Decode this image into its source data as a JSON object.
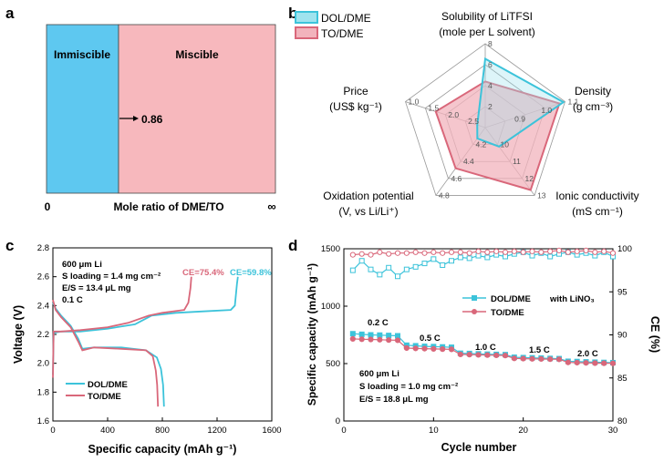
{
  "panels": {
    "a": "a",
    "b": "b",
    "c": "c",
    "d": "d"
  },
  "colors": {
    "dol": "#3cc3da",
    "to": "#d9677a",
    "dol_fill": "#9fe3ee",
    "to_fill": "#f2b3bc",
    "imm": "#5ec8f0",
    "mis": "#f7b8bd"
  },
  "chart_data": [
    {
      "id": "a",
      "type": "bar",
      "title": "",
      "xlabel": "Mole ratio of DME/TO",
      "xlim_labels": [
        "0",
        "∞"
      ],
      "regions": [
        {
          "name": "Immiscible",
          "from": 0,
          "to": 0.86
        },
        {
          "name": "Miscible",
          "from": 0.86,
          "to": "∞"
        }
      ],
      "annotation": "0.86"
    },
    {
      "id": "b",
      "type": "radar",
      "legend": [
        "DOL/DME",
        "TO/DME"
      ],
      "axes": [
        {
          "label": [
            "Solubility of LiTFSI",
            "(mole per L solvent)"
          ],
          "ticks": [
            "2",
            "4",
            "6",
            "8"
          ]
        },
        {
          "label": [
            "Density",
            "(g cm⁻³)"
          ],
          "ticks": [
            "0.9",
            "1.0",
            "1.1"
          ]
        },
        {
          "label": [
            "Ionic conductivity",
            "(mS cm⁻¹)"
          ],
          "ticks": [
            "10",
            "11",
            "12",
            "13"
          ]
        },
        {
          "label": [
            "Oxidation potential",
            "(V, vs Li/Li⁺)"
          ],
          "ticks": [
            "4.2",
            "4.4",
            "4.6",
            "4.8"
          ]
        },
        {
          "label": [
            "Price",
            "(US$ kg⁻¹)"
          ],
          "ticks": [
            "2.5",
            "2.0",
            "1.5",
            "1.0"
          ]
        }
      ],
      "series": [
        {
          "name": "DOL/DME",
          "values": [
            0.82,
            0.98,
            0.28,
            0.16,
            0.1
          ]
        },
        {
          "name": "TO/DME",
          "values": [
            0.55,
            0.93,
            0.92,
            0.6,
            0.62
          ]
        }
      ]
    },
    {
      "id": "c",
      "type": "line",
      "xlabel": "Specific capacity (mAh g⁻¹)",
      "ylabel": "Voltage (V)",
      "xlim": [
        0,
        1600
      ],
      "ylim": [
        1.6,
        2.8
      ],
      "xticks": [
        "0",
        "400",
        "800",
        "1200",
        "1600"
      ],
      "yticks": [
        "1.6",
        "1.8",
        "2.0",
        "2.2",
        "2.4",
        "2.6",
        "2.8"
      ],
      "annotations": [
        "600 μm Li",
        "S loading = 1.4 mg cm⁻²",
        "E/S = 13.4 μL mg",
        "0.1 C"
      ],
      "ce_labels": [
        {
          "name": "TO/DME",
          "text": "CE=75.4%"
        },
        {
          "name": "DOL/DME",
          "text": "CE=59.8%"
        }
      ],
      "series": [
        {
          "name": "DOL/DME",
          "discharge": [
            [
              0,
              2.42
            ],
            [
              20,
              2.38
            ],
            [
              60,
              2.33
            ],
            [
              130,
              2.26
            ],
            [
              185,
              2.17
            ],
            [
              215,
              2.1
            ],
            [
              300,
              2.11
            ],
            [
              500,
              2.11
            ],
            [
              680,
              2.09
            ],
            [
              760,
              2.04
            ],
            [
              790,
              1.96
            ],
            [
              805,
              1.85
            ],
            [
              812,
              1.7
            ]
          ],
          "charge": [
            [
              0,
              1.92
            ],
            [
              5,
              2.21
            ],
            [
              60,
              2.22
            ],
            [
              200,
              2.22
            ],
            [
              400,
              2.24
            ],
            [
              600,
              2.27
            ],
            [
              720,
              2.33
            ],
            [
              900,
              2.35
            ],
            [
              1100,
              2.36
            ],
            [
              1300,
              2.37
            ],
            [
              1330,
              2.4
            ],
            [
              1345,
              2.55
            ],
            [
              1352,
              2.6
            ]
          ]
        },
        {
          "name": "TO/DME",
          "discharge": [
            [
              0,
              2.44
            ],
            [
              20,
              2.37
            ],
            [
              60,
              2.32
            ],
            [
              130,
              2.25
            ],
            [
              185,
              2.15
            ],
            [
              215,
              2.09
            ],
            [
              300,
              2.11
            ],
            [
              500,
              2.1
            ],
            [
              680,
              2.09
            ],
            [
              730,
              2.05
            ],
            [
              752,
              1.95
            ],
            [
              762,
              1.85
            ],
            [
              768,
              1.7
            ]
          ],
          "charge": [
            [
              0,
              1.9
            ],
            [
              5,
              2.22
            ],
            [
              60,
              2.22
            ],
            [
              200,
              2.23
            ],
            [
              400,
              2.25
            ],
            [
              550,
              2.28
            ],
            [
              700,
              2.33
            ],
            [
              800,
              2.35
            ],
            [
              960,
              2.37
            ],
            [
              990,
              2.42
            ],
            [
              1005,
              2.52
            ],
            [
              1012,
              2.6
            ]
          ]
        }
      ]
    },
    {
      "id": "d",
      "type": "scatter",
      "xlabel": "Cycle number",
      "ylabel": "Specific capacity (mAh g⁻¹)",
      "y2label": "CE (%)",
      "xlim": [
        0,
        30
      ],
      "ylim": [
        0,
        1500
      ],
      "y2lim": [
        80,
        100
      ],
      "xticks": [
        "0",
        "10",
        "20",
        "30"
      ],
      "yticks": [
        "0",
        "500",
        "1000",
        "1500"
      ],
      "y2ticks": [
        "80",
        "85",
        "90",
        "95",
        "100"
      ],
      "legend": [
        "DOL/DME",
        "TO/DME"
      ],
      "legend_note": "with LiNO₃",
      "rate_labels": [
        "0.2 C",
        "0.5 C",
        "1.0 C",
        "1.5 C",
        "2.0 C"
      ],
      "annotations": [
        "600 μm Li",
        "S loading = 1.0 mg cm⁻²",
        "E/S = 18.8 μL mg"
      ],
      "series": [
        {
          "name": "DOL/DME capacity",
          "values": [
            760,
            755,
            750,
            748,
            745,
            742,
            660,
            655,
            650,
            648,
            645,
            642,
            590,
            588,
            585,
            582,
            580,
            578,
            555,
            552,
            550,
            548,
            545,
            543,
            520,
            518,
            515,
            512,
            510,
            508
          ]
        },
        {
          "name": "TO/DME capacity",
          "values": [
            715,
            712,
            710,
            708,
            705,
            703,
            635,
            632,
            630,
            628,
            626,
            624,
            580,
            578,
            576,
            574,
            572,
            570,
            545,
            543,
            541,
            540,
            538,
            537,
            510,
            508,
            506,
            504,
            503,
            502
          ]
        },
        {
          "name": "DOL/DME CE",
          "values": [
            97.5,
            98.6,
            97.6,
            97.0,
            97.8,
            96.8,
            97.6,
            97.9,
            98.3,
            98.8,
            98.1,
            98.6,
            99.0,
            98.9,
            99.2,
            99.0,
            99.3,
            99.1,
            99.4,
            99.6,
            99.2,
            99.5,
            99.1,
            99.4,
            99.6,
            99.3,
            99.5,
            99.2,
            99.6,
            99.1
          ]
        },
        {
          "name": "TO/DME CE",
          "values": [
            99.3,
            99.4,
            99.3,
            99.6,
            99.4,
            99.5,
            99.5,
            99.6,
            99.5,
            99.6,
            99.5,
            99.6,
            99.6,
            99.5,
            99.7,
            99.6,
            99.7,
            99.6,
            99.7,
            99.6,
            99.7,
            99.6,
            99.7,
            99.8,
            99.6,
            99.7,
            99.8,
            99.6,
            99.7,
            99.5
          ]
        }
      ]
    }
  ]
}
